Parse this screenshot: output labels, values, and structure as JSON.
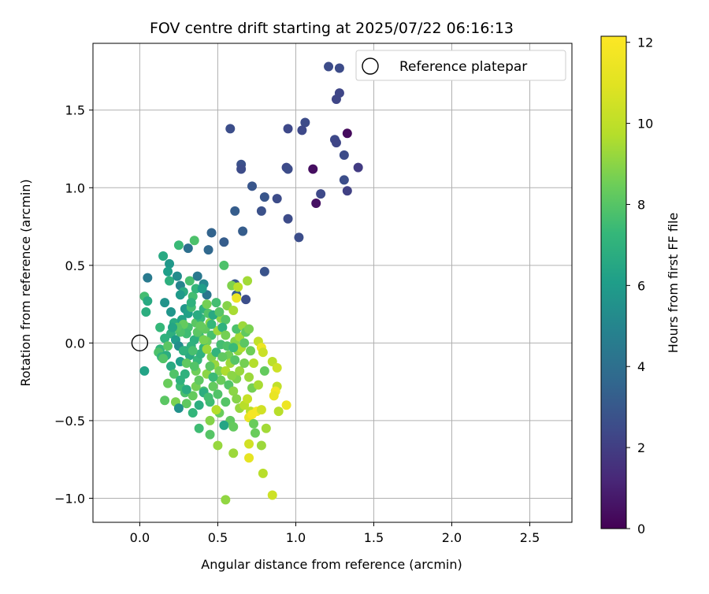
{
  "chart_data": {
    "type": "scatter",
    "title": "FOV centre drift starting at 2025/07/22 06:16:13",
    "xlabel": "Angular distance from reference (arcmin)",
    "ylabel": "Rotation from reference (arcmin)",
    "xlim": [
      -0.3,
      2.77
    ],
    "ylim": [
      -1.155,
      1.93
    ],
    "xticks": [
      0.0,
      0.5,
      1.0,
      1.5,
      2.0,
      2.5
    ],
    "xtick_labels": [
      "0.0",
      "0.5",
      "1.0",
      "1.5",
      "2.0",
      "2.5"
    ],
    "yticks": [
      -1.0,
      -0.5,
      0.0,
      0.5,
      1.0,
      1.5
    ],
    "ytick_labels": [
      "−1.0",
      "−0.5",
      "0.0",
      "0.5",
      "1.0",
      "1.5"
    ],
    "grid": true,
    "colormap": "viridis",
    "colorbar": {
      "label": "Hours from first FF file",
      "range": [
        0,
        12.15
      ],
      "ticks": [
        0,
        2,
        4,
        6,
        8,
        10,
        12
      ],
      "tick_labels": [
        "0",
        "2",
        "4",
        "6",
        "8",
        "10",
        "12"
      ]
    },
    "reference": {
      "name": "Reference platepar",
      "x": 0.0,
      "y": 0.0
    },
    "legend": {
      "placement": "top-right",
      "entries": [
        "Reference platepar"
      ]
    },
    "points": [
      [
        1.21,
        1.78,
        2.5
      ],
      [
        1.28,
        1.77,
        2.5
      ],
      [
        1.28,
        1.61,
        2.3
      ],
      [
        1.26,
        1.57,
        2.3
      ],
      [
        1.33,
        1.35,
        0.3
      ],
      [
        1.25,
        1.31,
        2.4
      ],
      [
        1.26,
        1.29,
        2.3
      ],
      [
        1.31,
        1.21,
        2.5
      ],
      [
        1.4,
        1.13,
        1.9
      ],
      [
        1.11,
        1.12,
        0.4
      ],
      [
        1.31,
        1.05,
        2.6
      ],
      [
        1.33,
        0.98,
        2.1
      ],
      [
        1.16,
        0.96,
        2.4
      ],
      [
        1.13,
        0.9,
        0.5
      ],
      [
        1.06,
        1.42,
        2.5
      ],
      [
        1.04,
        1.37,
        2.4
      ],
      [
        0.95,
        1.38,
        2.4
      ],
      [
        0.94,
        1.13,
        2.4
      ],
      [
        0.95,
        1.12,
        2.5
      ],
      [
        0.88,
        0.93,
        2.5
      ],
      [
        0.95,
        0.8,
        2.5
      ],
      [
        1.02,
        0.68,
        2.6
      ],
      [
        0.58,
        1.38,
        2.6
      ],
      [
        0.65,
        1.15,
        2.7
      ],
      [
        0.65,
        1.12,
        2.5
      ],
      [
        0.72,
        1.01,
        2.9
      ],
      [
        0.8,
        0.94,
        2.9
      ],
      [
        0.78,
        0.85,
        2.7
      ],
      [
        0.61,
        0.85,
        3.2
      ],
      [
        0.66,
        0.72,
        3.2
      ],
      [
        0.46,
        0.71,
        3.5
      ],
      [
        0.54,
        0.65,
        3.2
      ],
      [
        0.44,
        0.6,
        3.7
      ],
      [
        0.31,
        0.61,
        4.0
      ],
      [
        0.8,
        0.46,
        2.8
      ],
      [
        0.68,
        0.28,
        2.6
      ],
      [
        0.61,
        0.38,
        3.0
      ],
      [
        0.62,
        0.31,
        3.2
      ],
      [
        0.35,
        0.66,
        7.8
      ],
      [
        0.25,
        0.63,
        7.4
      ],
      [
        0.15,
        0.56,
        6.6
      ],
      [
        0.19,
        0.51,
        5.8
      ],
      [
        0.18,
        0.46,
        6.1
      ],
      [
        0.05,
        0.42,
        4.5
      ],
      [
        0.19,
        0.4,
        6.9
      ],
      [
        0.24,
        0.43,
        5.3
      ],
      [
        0.26,
        0.37,
        5.0
      ],
      [
        0.32,
        0.4,
        7.7
      ],
      [
        0.37,
        0.43,
        4.4
      ],
      [
        0.41,
        0.38,
        5.1
      ],
      [
        0.43,
        0.31,
        4.3
      ],
      [
        0.03,
        0.3,
        7.6
      ],
      [
        0.05,
        0.27,
        6.6
      ],
      [
        0.16,
        0.26,
        5.6
      ],
      [
        0.04,
        0.2,
        6.8
      ],
      [
        0.2,
        0.2,
        5.7
      ],
      [
        0.22,
        0.13,
        6.7
      ],
      [
        0.28,
        0.33,
        6.7
      ],
      [
        0.34,
        0.3,
        7.6
      ],
      [
        0.26,
        0.31,
        5.9
      ],
      [
        0.29,
        0.22,
        5.8
      ],
      [
        0.31,
        0.19,
        6.2
      ],
      [
        0.27,
        0.15,
        6.3
      ],
      [
        0.13,
        0.1,
        7.3
      ],
      [
        0.2,
        0.06,
        6.9
      ],
      [
        0.13,
        -0.04,
        7.2
      ],
      [
        0.12,
        -0.06,
        7.8
      ],
      [
        0.14,
        -0.09,
        7.1
      ],
      [
        0.16,
        0.03,
        7.0
      ],
      [
        0.23,
        0.02,
        6.0
      ],
      [
        0.25,
        -0.02,
        5.4
      ],
      [
        0.29,
        -0.05,
        6.4
      ],
      [
        0.32,
        -0.08,
        6.6
      ],
      [
        0.37,
        -0.11,
        7.3
      ],
      [
        0.26,
        -0.12,
        6.1
      ],
      [
        0.2,
        -0.15,
        6.6
      ],
      [
        0.03,
        -0.18,
        6.3
      ],
      [
        0.29,
        -0.2,
        7.0
      ],
      [
        0.26,
        -0.28,
        7.5
      ],
      [
        0.29,
        -0.32,
        7.7
      ],
      [
        0.34,
        -0.34,
        8.3
      ],
      [
        0.36,
        -0.28,
        8.6
      ],
      [
        0.18,
        -0.26,
        8.4
      ],
      [
        0.16,
        -0.37,
        8.1
      ],
      [
        0.23,
        -0.38,
        8.7
      ],
      [
        0.3,
        -0.39,
        8.2
      ],
      [
        0.25,
        -0.42,
        5.5
      ],
      [
        0.45,
        -0.38,
        7.5
      ],
      [
        0.41,
        -0.31,
        7.8
      ],
      [
        0.38,
        -0.24,
        8.2
      ],
      [
        0.36,
        -0.18,
        8.5
      ],
      [
        0.43,
        -0.2,
        9.0
      ],
      [
        0.47,
        -0.28,
        8.3
      ],
      [
        0.5,
        -0.33,
        7.9
      ],
      [
        0.55,
        -0.38,
        8.0
      ],
      [
        0.51,
        -0.45,
        8.4
      ],
      [
        0.58,
        -0.5,
        8.2
      ],
      [
        0.54,
        -0.53,
        6.4
      ],
      [
        0.38,
        -0.55,
        7.5
      ],
      [
        0.45,
        -0.59,
        8.0
      ],
      [
        0.6,
        -0.54,
        8.3
      ],
      [
        0.5,
        -0.66,
        9.2
      ],
      [
        0.6,
        -0.71,
        9.3
      ],
      [
        0.55,
        -1.01,
        9.1
      ],
      [
        0.41,
        -0.32,
        6.8
      ],
      [
        0.33,
        0.23,
        7.6
      ],
      [
        0.36,
        0.13,
        8.1
      ],
      [
        0.39,
        0.16,
        7.3
      ],
      [
        0.41,
        0.22,
        7.0
      ],
      [
        0.43,
        0.25,
        8.6
      ],
      [
        0.38,
        0.05,
        7.5
      ],
      [
        0.35,
        0.02,
        6.9
      ],
      [
        0.33,
        -0.02,
        7.0
      ],
      [
        0.31,
        0.1,
        7.7
      ],
      [
        0.28,
        0.12,
        8.3
      ],
      [
        0.42,
        0.09,
        8.2
      ],
      [
        0.45,
        0.13,
        9.0
      ],
      [
        0.46,
        0.05,
        7.7
      ],
      [
        0.43,
        0.01,
        8.5
      ],
      [
        0.41,
        -0.03,
        7.2
      ],
      [
        0.39,
        -0.07,
        7.0
      ],
      [
        0.46,
        -0.09,
        8.8
      ],
      [
        0.48,
        -0.14,
        9.2
      ],
      [
        0.51,
        -0.18,
        8.7
      ],
      [
        0.49,
        -0.06,
        7.1
      ],
      [
        0.52,
        -0.01,
        7.6
      ],
      [
        0.5,
        0.08,
        9.3
      ],
      [
        0.52,
        0.16,
        9.0
      ],
      [
        0.55,
        0.15,
        8.0
      ],
      [
        0.56,
        0.24,
        8.9
      ],
      [
        0.49,
        0.26,
        7.6
      ],
      [
        0.53,
        0.1,
        7.0
      ],
      [
        0.55,
        0.05,
        8.6
      ],
      [
        0.56,
        -0.02,
        7.8
      ],
      [
        0.57,
        -0.08,
        8.5
      ],
      [
        0.58,
        -0.13,
        9.3
      ],
      [
        0.55,
        -0.18,
        9.6
      ],
      [
        0.52,
        -0.24,
        8.4
      ],
      [
        0.57,
        -0.27,
        7.9
      ],
      [
        0.6,
        -0.31,
        9.0
      ],
      [
        0.62,
        -0.23,
        8.8
      ],
      [
        0.64,
        -0.18,
        9.2
      ],
      [
        0.61,
        -0.11,
        8.0
      ],
      [
        0.63,
        -0.05,
        9.1
      ],
      [
        0.65,
        -0.03,
        9.6
      ],
      [
        0.61,
        0.01,
        8.9
      ],
      [
        0.64,
        0.04,
        9.4
      ],
      [
        0.62,
        0.09,
        7.8
      ],
      [
        0.66,
        0.11,
        9.3
      ],
      [
        0.68,
        0.07,
        8.2
      ],
      [
        0.7,
        0.09,
        8.7
      ],
      [
        0.67,
        0.0,
        8.1
      ],
      [
        0.59,
        0.37,
        8.8
      ],
      [
        0.63,
        0.36,
        9.9
      ],
      [
        0.69,
        0.4,
        9.4
      ],
      [
        0.6,
        0.21,
        9.5
      ],
      [
        0.62,
        0.29,
        11.4
      ],
      [
        0.71,
        -0.05,
        8.5
      ],
      [
        0.73,
        -0.13,
        9.7
      ],
      [
        0.7,
        -0.22,
        9.3
      ],
      [
        0.72,
        -0.29,
        8.6
      ],
      [
        0.76,
        -0.27,
        9.5
      ],
      [
        0.76,
        0.01,
        10.1
      ],
      [
        0.78,
        -0.03,
        11.5
      ],
      [
        0.79,
        -0.06,
        10.3
      ],
      [
        0.8,
        -0.18,
        8.3
      ],
      [
        0.71,
        -0.44,
        9.8
      ],
      [
        0.7,
        -0.48,
        11.3
      ],
      [
        0.72,
        -0.46,
        11.8
      ],
      [
        0.75,
        -0.44,
        11.8
      ],
      [
        0.78,
        -0.43,
        10.5
      ],
      [
        0.73,
        -0.52,
        8.4
      ],
      [
        0.74,
        -0.58,
        8.4
      ],
      [
        0.81,
        -0.55,
        9.4
      ],
      [
        0.7,
        -0.65,
        10.5
      ],
      [
        0.78,
        -0.66,
        9.3
      ],
      [
        0.7,
        -0.74,
        11.2
      ],
      [
        0.79,
        -0.84,
        9.8
      ],
      [
        0.85,
        -0.98,
        10.4
      ],
      [
        0.85,
        -0.12,
        9.9
      ],
      [
        0.88,
        -0.16,
        10.4
      ],
      [
        0.88,
        -0.28,
        10.1
      ],
      [
        0.87,
        -0.31,
        11.7
      ],
      [
        0.86,
        -0.34,
        11.3
      ],
      [
        0.89,
        -0.44,
        9.8
      ],
      [
        0.94,
        -0.4,
        11.5
      ],
      [
        0.64,
        -0.42,
        9.2
      ],
      [
        0.67,
        -0.4,
        9.8
      ],
      [
        0.69,
        -0.36,
        10.2
      ],
      [
        0.49,
        -0.43,
        9.7
      ],
      [
        0.45,
        -0.5,
        8.9
      ],
      [
        0.34,
        -0.45,
        7.2
      ],
      [
        0.22,
        -0.2,
        7.9
      ],
      [
        0.26,
        -0.24,
        7.0
      ],
      [
        0.3,
        -0.13,
        8.2
      ],
      [
        0.34,
        -0.05,
        7.7
      ],
      [
        0.3,
        0.06,
        7.5
      ],
      [
        0.26,
        0.07,
        7.8
      ],
      [
        0.24,
        0.1,
        8.0
      ],
      [
        0.21,
        0.1,
        6.4
      ],
      [
        0.18,
        -0.02,
        8.1
      ],
      [
        0.17,
        -0.08,
        6.8
      ],
      [
        0.15,
        -0.1,
        7.9
      ],
      [
        0.36,
        0.35,
        7.2
      ],
      [
        0.4,
        0.35,
        6.1
      ],
      [
        0.44,
        0.19,
        7.9
      ],
      [
        0.47,
        0.18,
        6.6
      ],
      [
        0.51,
        0.2,
        8.0
      ],
      [
        0.54,
        0.5,
        7.8
      ],
      [
        0.33,
        0.26,
        7.0
      ],
      [
        0.37,
        0.07,
        8.1
      ],
      [
        0.39,
        0.11,
        8.3
      ],
      [
        0.41,
        0.02,
        8.7
      ],
      [
        0.43,
        -0.04,
        9.3
      ],
      [
        0.45,
        -0.15,
        8.1
      ],
      [
        0.47,
        -0.22,
        7.4
      ],
      [
        0.38,
        -0.4,
        6.8
      ],
      [
        0.44,
        -0.35,
        7.6
      ],
      [
        0.3,
        -0.3,
        6.7
      ],
      [
        0.28,
        -0.05,
        7.0
      ],
      [
        0.35,
        -0.15,
        7.9
      ],
      [
        0.37,
        0.18,
        6.7
      ],
      [
        0.46,
        0.12,
        7.3
      ],
      [
        0.53,
        -0.09,
        8.2
      ],
      [
        0.59,
        -0.21,
        9.0
      ],
      [
        0.6,
        -0.03,
        7.4
      ],
      [
        0.62,
        -0.36,
        8.9
      ],
      [
        0.67,
        -0.13,
        8.6
      ]
    ]
  }
}
